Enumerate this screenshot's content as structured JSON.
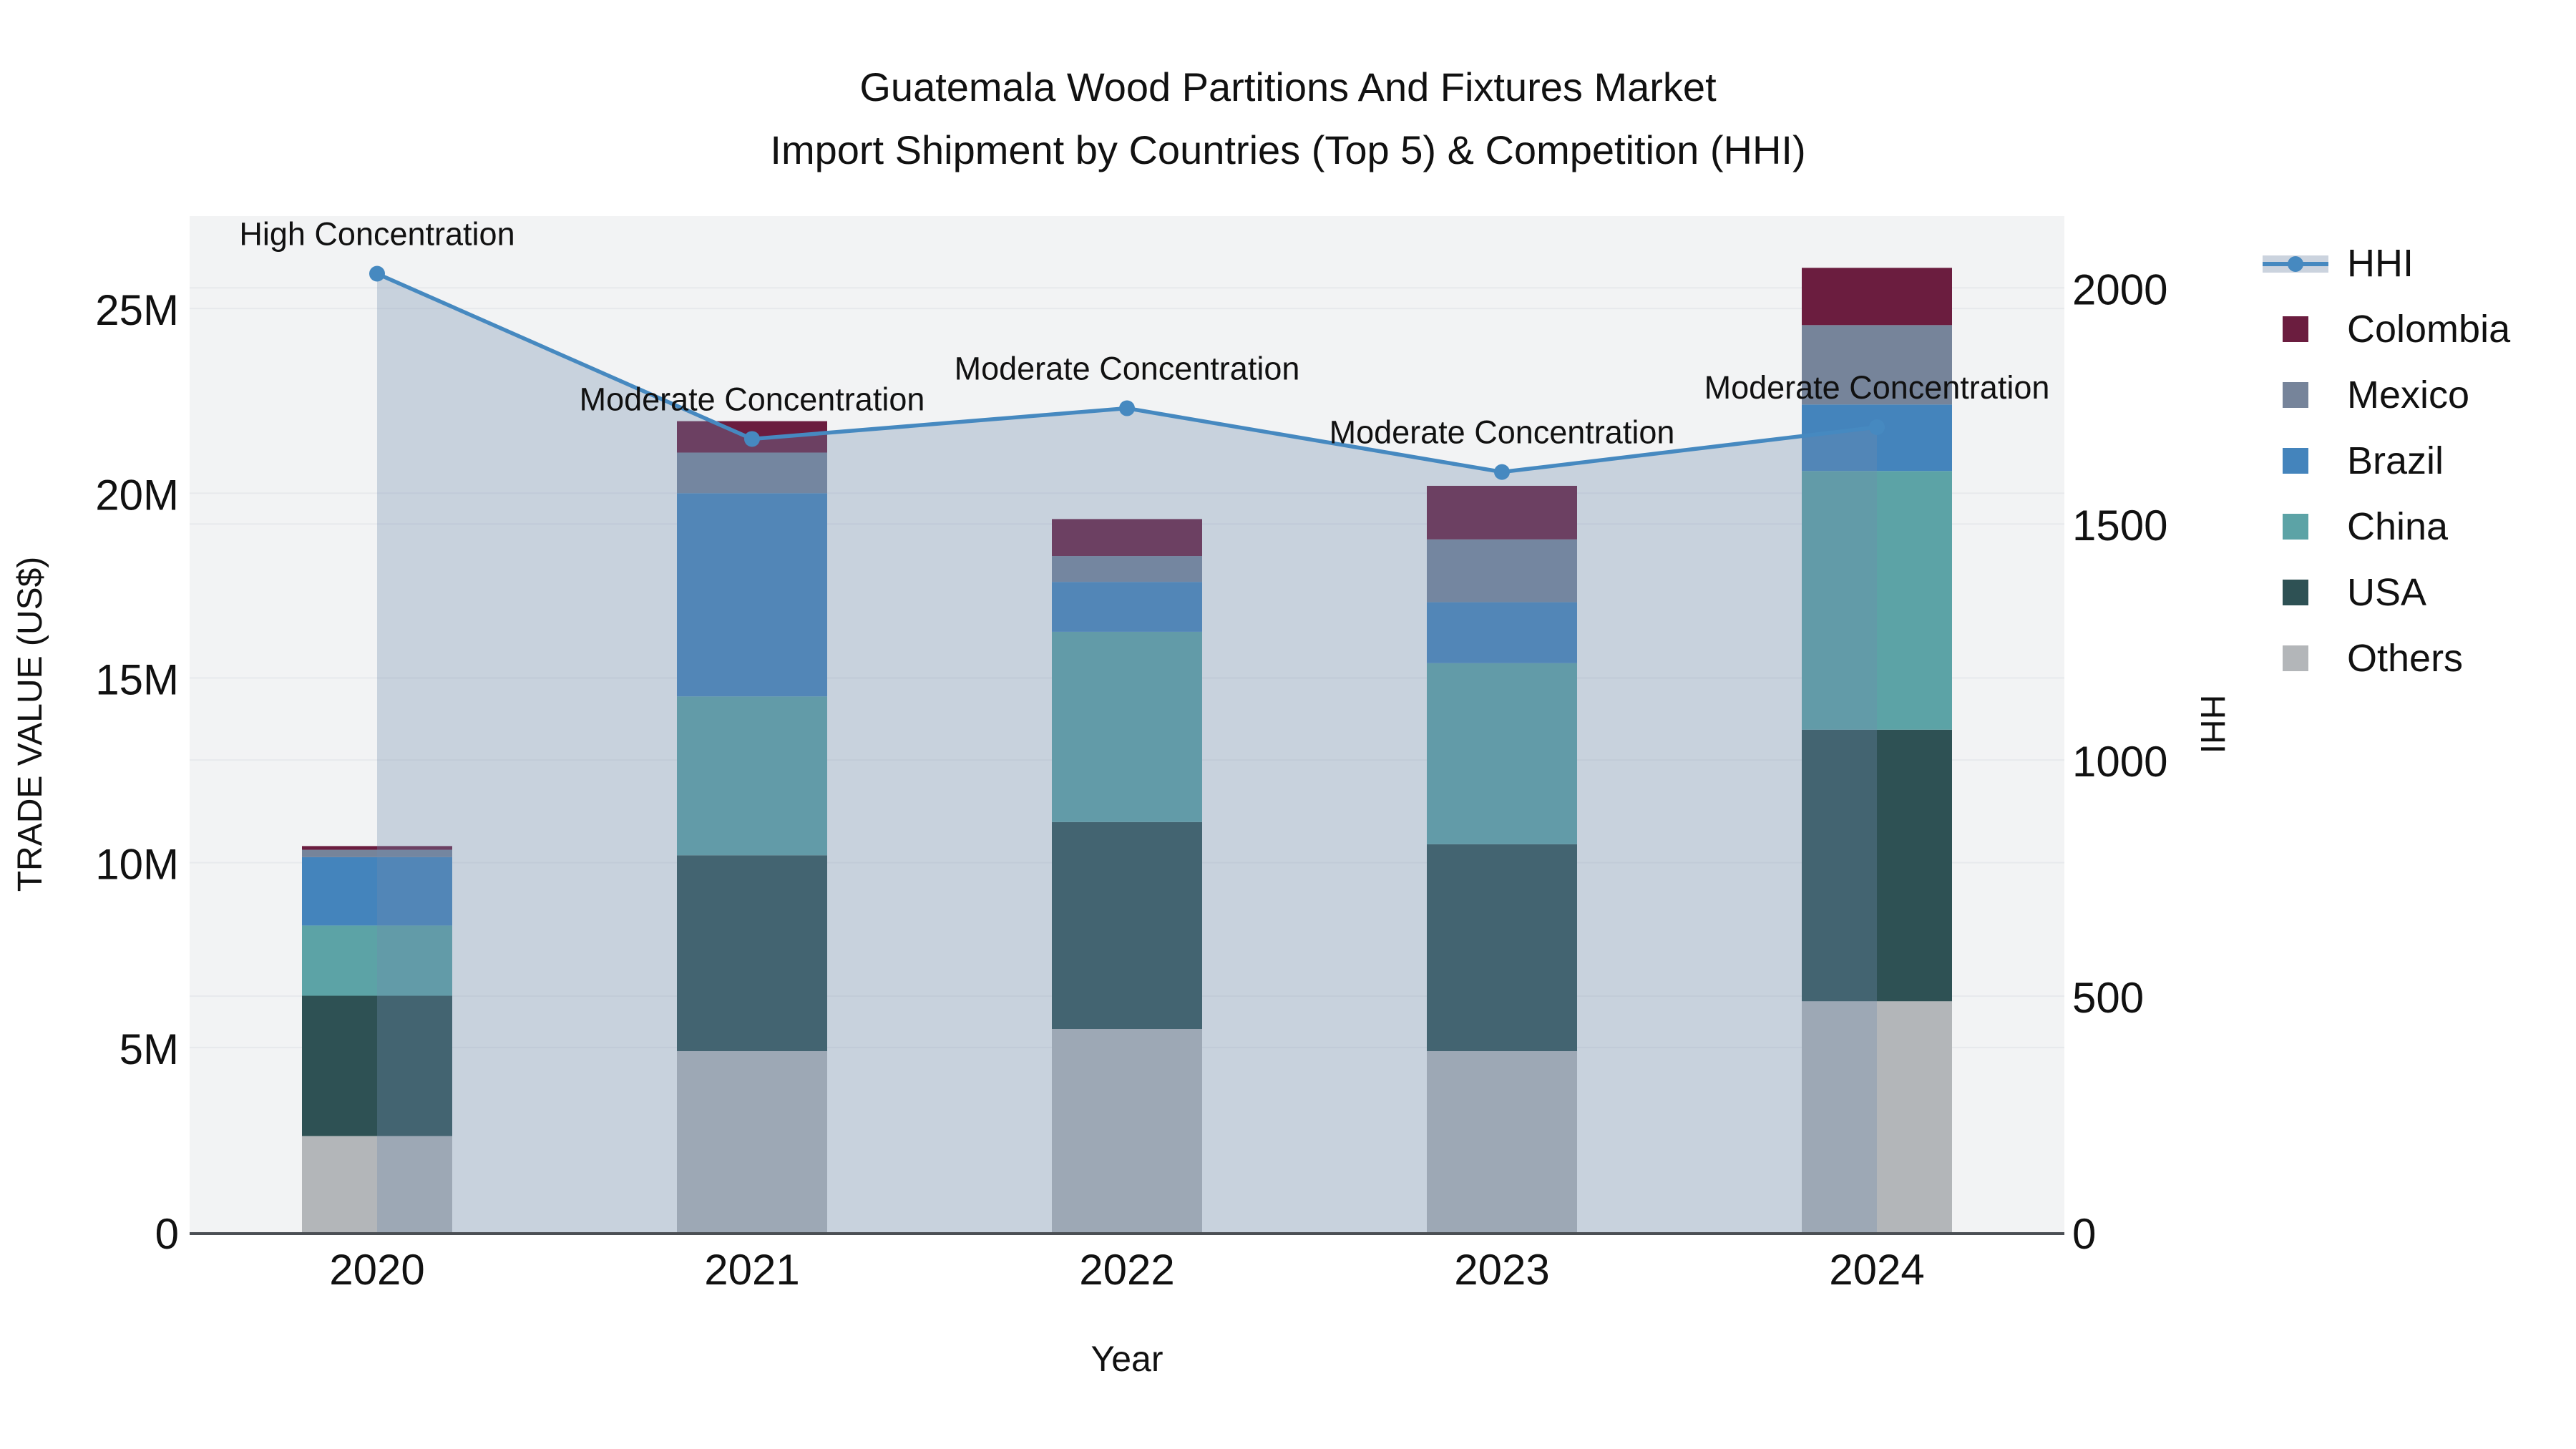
{
  "chart_data": {
    "type": "combo-stacked-bar-line",
    "title_line1": "Guatemala Wood Partitions And Fixtures Market",
    "title_line2": "Import Shipment by Countries (Top 5) & Competition (HHI)",
    "categories": [
      "2020",
      "2021",
      "2022",
      "2023",
      "2024"
    ],
    "unit": "Trade value in millions of US$",
    "bar_series": [
      {
        "name": "Others",
        "color": "#B3B6B9",
        "values": [
          2.6,
          4.9,
          5.5,
          4.9,
          6.25
        ]
      },
      {
        "name": "USA",
        "color": "#2E5154",
        "values": [
          3.8,
          5.3,
          5.6,
          5.6,
          7.35
        ]
      },
      {
        "name": "China",
        "color": "#5CA3A6",
        "values": [
          1.9,
          4.3,
          5.15,
          4.9,
          7.0
        ]
      },
      {
        "name": "Brazil",
        "color": "#4484BC",
        "values": [
          1.85,
          5.5,
          1.35,
          1.65,
          1.8
        ]
      },
      {
        "name": "Mexico",
        "color": "#76849A",
        "values": [
          0.2,
          1.1,
          0.7,
          1.7,
          2.15
        ]
      },
      {
        "name": "Colombia",
        "color": "#6B1D3F",
        "values": [
          0.1,
          0.85,
          1.0,
          1.45,
          1.55
        ]
      }
    ],
    "bar_totals": [
      10.45,
      21.95,
      19.3,
      20.2,
      26.1
    ],
    "line_series": {
      "name": "HHI",
      "color": "#4689C0",
      "values": [
        2030,
        1680,
        1745,
        1610,
        1705
      ]
    },
    "area_fill_color": "rgba(112,140,175,0.32)",
    "annotations": [
      {
        "category": "2020",
        "text": "High Concentration"
      },
      {
        "category": "2021",
        "text": "Moderate Concentration"
      },
      {
        "category": "2022",
        "text": "Moderate Concentration"
      },
      {
        "category": "2023",
        "text": "Moderate Concentration"
      },
      {
        "category": "2024",
        "text": "Moderate Concentration"
      }
    ],
    "x_axis": {
      "label": "Year"
    },
    "y_axis_left": {
      "label": "TRADE VALUE (US$)",
      "ticks": [
        "0",
        "5M",
        "10M",
        "15M",
        "20M",
        "25M"
      ],
      "tick_values": [
        0,
        5,
        10,
        15,
        20,
        25
      ],
      "range": [
        0,
        27.5
      ]
    },
    "y_axis_right": {
      "label": "HHI",
      "ticks": [
        "0",
        "500",
        "1000",
        "1500",
        "2000"
      ],
      "tick_values": [
        0,
        500,
        1000,
        1500,
        2000
      ],
      "range": [
        0,
        2152
      ]
    },
    "legend": [
      {
        "label": "HHI",
        "type": "line",
        "color": "#4689C0"
      },
      {
        "label": "Colombia",
        "type": "square",
        "color": "#6B1D3F"
      },
      {
        "label": "Mexico",
        "type": "square",
        "color": "#76849A"
      },
      {
        "label": "Brazil",
        "type": "square",
        "color": "#4484BC"
      },
      {
        "label": "China",
        "type": "square",
        "color": "#5CA3A6"
      },
      {
        "label": "USA",
        "type": "square",
        "color": "#2E5154"
      },
      {
        "label": "Others",
        "type": "square",
        "color": "#B3B6B9"
      }
    ],
    "plot_background": "#F2F3F4",
    "grid_color": "#E7E9EC",
    "axis_line_color": "#4B4F54",
    "text_color": "#111111"
  }
}
